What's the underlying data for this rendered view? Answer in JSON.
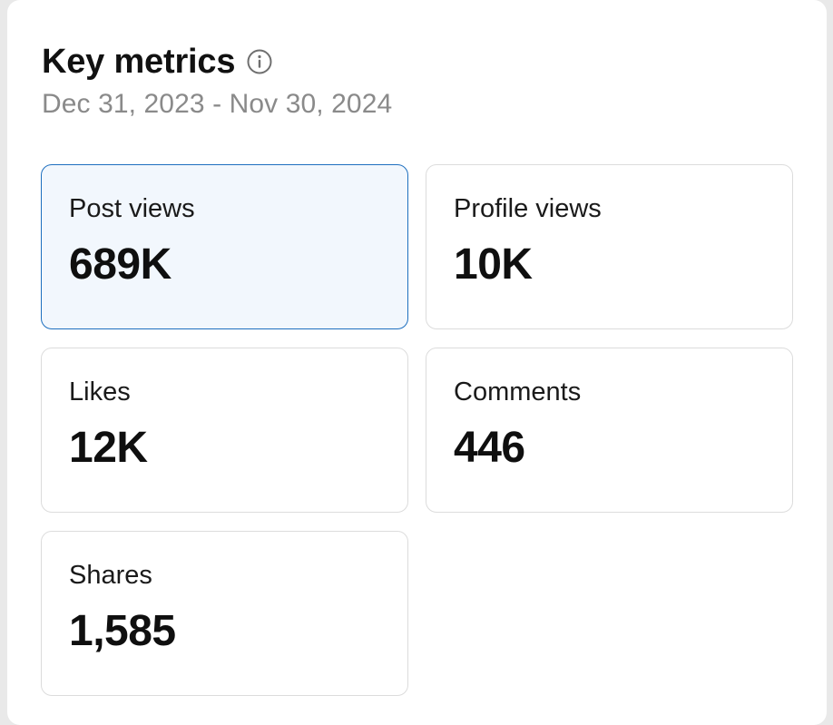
{
  "header": {
    "title": "Key metrics",
    "info_icon": "info-icon",
    "date_range": "Dec 31, 2023 - Nov 30, 2024"
  },
  "metrics": [
    {
      "label": "Post views",
      "value": "689K",
      "selected": true
    },
    {
      "label": "Profile views",
      "value": "10K",
      "selected": false
    },
    {
      "label": "Likes",
      "value": "12K",
      "selected": false
    },
    {
      "label": "Comments",
      "value": "446",
      "selected": false
    },
    {
      "label": "Shares",
      "value": "1,585",
      "selected": false
    }
  ],
  "colors": {
    "selected_border": "#1e6fbf",
    "selected_background": "#f2f7fd",
    "card_border": "#dcdcdc",
    "muted_text": "#8a8a8a"
  }
}
